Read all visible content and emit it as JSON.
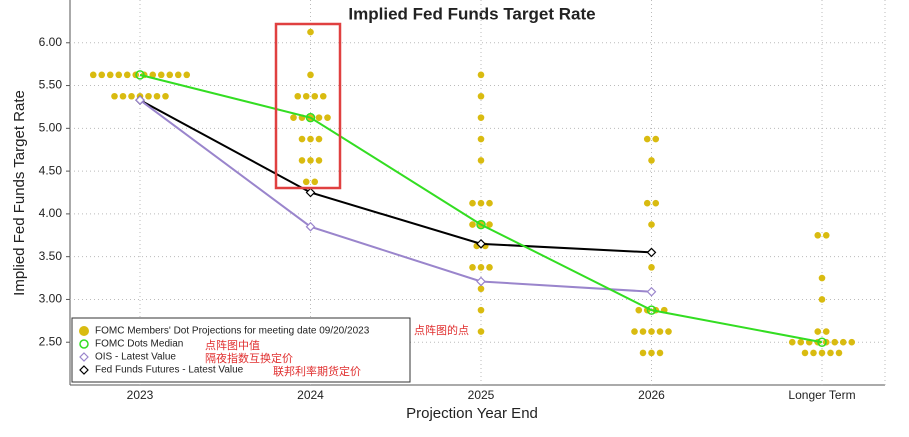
{
  "chart_data": {
    "type": "dot_plot",
    "title": "Implied Fed Funds Target Rate",
    "y_label": "Implied Fed Funds Target Rate",
    "x_label": "Projection Year End",
    "categories": [
      "2023",
      "2024",
      "2025",
      "2026",
      "Longer Term"
    ],
    "ylim": [
      2.0,
      6.5
    ],
    "yticks": [
      {
        "value": 2.5,
        "label": "2.50"
      },
      {
        "value": 3.0,
        "label": "3.00"
      },
      {
        "value": 3.5,
        "label": "3.50"
      },
      {
        "value": 4.0,
        "label": "4.00"
      },
      {
        "value": 4.5,
        "label": "4.50"
      },
      {
        "value": 5.0,
        "label": "5.00"
      },
      {
        "value": 5.5,
        "label": "5.50"
      },
      {
        "value": 6.0,
        "label": "6.00"
      }
    ],
    "grid": true,
    "dots": {
      "name": "FOMC Members' Dot Projections for meeting date 09/20/2023",
      "color": "#d9bb10",
      "values": [
        [
          5.625,
          5.625,
          5.625,
          5.625,
          5.625,
          5.625,
          5.625,
          5.625,
          5.625,
          5.625,
          5.625,
          5.625,
          5.375,
          5.375,
          5.375,
          5.375,
          5.375,
          5.375,
          5.375
        ],
        [
          6.125,
          5.625,
          5.375,
          5.375,
          5.375,
          5.375,
          5.125,
          5.125,
          5.125,
          5.125,
          5.125,
          4.875,
          4.875,
          4.875,
          4.625,
          4.625,
          4.625,
          4.375,
          4.375
        ],
        [
          5.625,
          5.375,
          5.125,
          4.875,
          4.625,
          4.125,
          4.125,
          4.125,
          3.875,
          3.875,
          3.875,
          3.625,
          3.625,
          3.375,
          3.375,
          3.375,
          3.125,
          2.875,
          2.625
        ],
        [
          4.875,
          4.875,
          4.625,
          4.125,
          4.125,
          3.875,
          3.375,
          2.875,
          2.875,
          2.875,
          2.875,
          2.625,
          2.625,
          2.625,
          2.625,
          2.625,
          2.375,
          2.375,
          2.375
        ],
        [
          3.75,
          3.75,
          3.25,
          3.0,
          2.625,
          2.625,
          2.5,
          2.5,
          2.5,
          2.5,
          2.5,
          2.5,
          2.5,
          2.5,
          2.375,
          2.375,
          2.375,
          2.375,
          2.375
        ]
      ],
      "annotation": "点阵图的点"
    },
    "series": [
      {
        "name": "FOMC Dots Median",
        "color": "#33dd22",
        "marker": "circle",
        "values": [
          5.625,
          5.125,
          3.875,
          2.875,
          2.5
        ],
        "annotation": "点阵图中值"
      },
      {
        "name": "OIS - Latest Value",
        "color": "#9a85cc",
        "marker": "diamond",
        "values": [
          5.33,
          3.85,
          3.21,
          3.09,
          null
        ],
        "annotation": "隔夜指数互换定价"
      },
      {
        "name": "Fed Funds Futures - Latest Value",
        "color": "#000000",
        "marker": "diamond",
        "values": [
          5.33,
          4.25,
          3.65,
          3.55,
          null
        ],
        "annotation": "联邦利率期货定价"
      }
    ]
  }
}
